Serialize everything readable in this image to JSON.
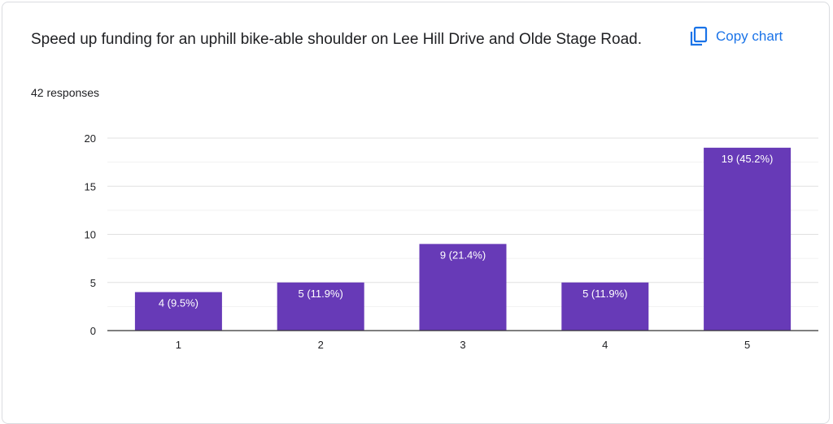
{
  "card": {
    "title": "Speed up funding for an uphill bike-able shoulder on Lee Hill Drive and Olde Stage Road.",
    "responses": "42 responses",
    "copy_label": "Copy chart",
    "copy_icon": "copy-icon"
  },
  "colors": {
    "bar": "#673ab7",
    "accent": "#1a73e8"
  },
  "chart_data": {
    "type": "bar",
    "categories": [
      "1",
      "2",
      "3",
      "4",
      "5"
    ],
    "values": [
      4,
      5,
      9,
      5,
      19
    ],
    "data_labels": [
      "4 (9.5%)",
      "5 (11.9%)",
      "9 (21.4%)",
      "5 (11.9%)",
      "19 (45.2%)"
    ],
    "yticks": [
      0,
      5,
      10,
      15,
      20
    ],
    "ylim": [
      0,
      20
    ],
    "title": "",
    "xlabel": "",
    "ylabel": "",
    "grid": true
  }
}
